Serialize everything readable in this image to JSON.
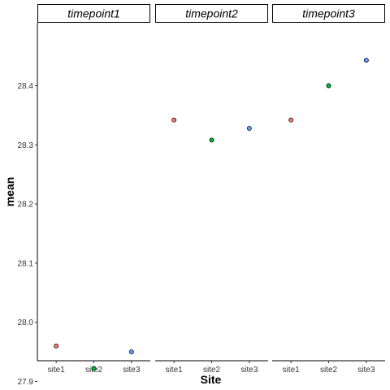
{
  "chart_data": {
    "type": "scatter",
    "xlabel": "Site",
    "ylabel": "mean",
    "categories": [
      "site1",
      "site2",
      "site3"
    ],
    "y_ticks": [
      27.9,
      28.0,
      28.1,
      28.2,
      28.3,
      28.4
    ],
    "y_tick_labels": [
      "27.9",
      "28.0",
      "28.1",
      "28.2",
      "28.3",
      "28.4"
    ],
    "ylim": [
      27.89,
      28.47
    ],
    "grid": false,
    "legend": "none",
    "point_colors": {
      "site1": "#F8766D",
      "site2": "#00BA38",
      "site3": "#619CFF"
    },
    "panels": [
      {
        "facet": "timepoint1",
        "values": [
          27.96,
          27.922,
          27.95
        ]
      },
      {
        "facet": "timepoint2",
        "values": [
          28.342,
          28.308,
          28.328
        ]
      },
      {
        "facet": "timepoint3",
        "values": [
          28.342,
          28.4,
          28.443
        ]
      }
    ]
  }
}
